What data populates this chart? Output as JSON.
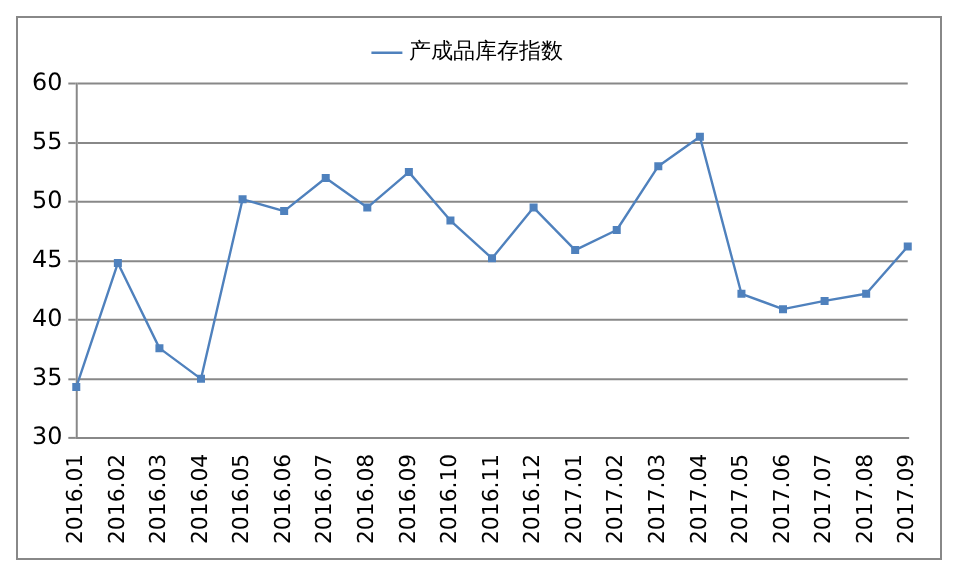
{
  "chart_data": {
    "type": "line",
    "categories": [
      "2016.01",
      "2016.02",
      "2016.03",
      "2016.04",
      "2016.05",
      "2016.06",
      "2016.07",
      "2016.08",
      "2016.09",
      "2016.10",
      "2016.11",
      "2016.12",
      "2017.01",
      "2017.02",
      "2017.03",
      "2017.04",
      "2017.05",
      "2017.06",
      "2017.07",
      "2017.08",
      "2017.09"
    ],
    "series": [
      {
        "name": "产成品库存指数",
        "color": "#4f81bd",
        "values": [
          34.3,
          44.8,
          37.6,
          35.0,
          50.2,
          49.2,
          52.0,
          49.5,
          52.5,
          48.4,
          45.2,
          49.5,
          45.9,
          47.6,
          53.0,
          55.5,
          42.2,
          40.9,
          41.6,
          42.2,
          46.2
        ]
      }
    ],
    "ylim": [
      30,
      60
    ],
    "yticks": [
      30,
      35,
      40,
      45,
      50,
      55,
      60
    ],
    "grid": "y",
    "legend": "top",
    "marker": "square",
    "line_style": "solid"
  }
}
